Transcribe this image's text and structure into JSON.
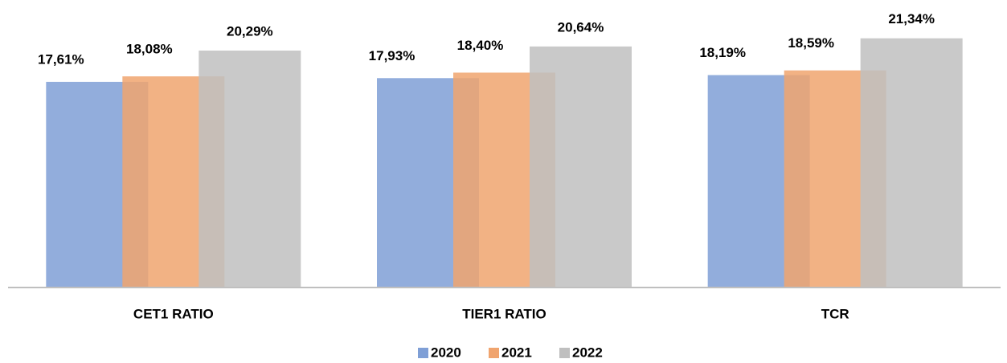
{
  "chart_data": {
    "type": "bar",
    "categories": [
      "CET1 RATIO",
      "TIER1 RATIO",
      "TCR"
    ],
    "series": [
      {
        "name": "2020",
        "color": "#7f9fd6",
        "values": [
          17.61,
          17.93,
          18.19
        ],
        "value_labels": [
          "17,61%",
          "17,93%",
          "18,19%"
        ]
      },
      {
        "name": "2021",
        "color": "#f0a46e",
        "values": [
          18.08,
          18.4,
          18.59
        ],
        "value_labels": [
          "18,08%",
          "18,40%",
          "18,59%"
        ]
      },
      {
        "name": "2022",
        "color": "#bfbfbf",
        "values": [
          20.29,
          20.64,
          21.34
        ],
        "value_labels": [
          "20,29%",
          "20,64%",
          "21,34%"
        ]
      }
    ],
    "ylim": [
      0,
      24
    ],
    "legend": "bottom"
  }
}
